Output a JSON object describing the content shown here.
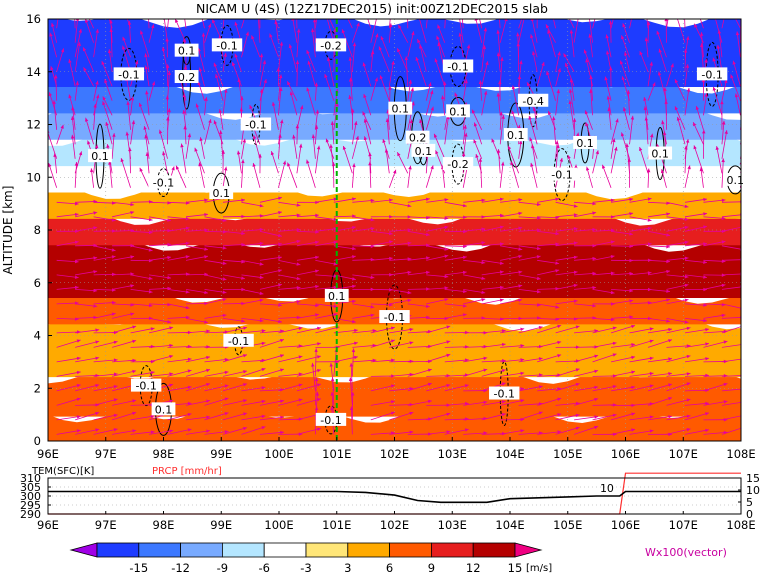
{
  "chart_data": [
    {
      "type": "heatmap",
      "title": "NICAM U (4S) (12Z17DEC2015) init:00Z12DEC2015 slab",
      "xlabel": "",
      "ylabel": "ALTITUDE [km]",
      "x_ticks": [
        "96E",
        "97E",
        "98E",
        "99E",
        "100E",
        "101E",
        "102E",
        "103E",
        "104E",
        "105E",
        "106E",
        "107E",
        "108E"
      ],
      "y_ticks": [
        "0",
        "2",
        "4",
        "6",
        "8",
        "10",
        "12",
        "14",
        "16"
      ],
      "xlim": [
        96,
        108
      ],
      "ylim": [
        0,
        16
      ],
      "grid": true,
      "marker_longitude": 101,
      "layers": [
        {
          "z0": 0,
          "z1": 1,
          "value": 9
        },
        {
          "z0": 1,
          "z1": 2.5,
          "value": 9
        },
        {
          "z0": 2.5,
          "z1": 4.5,
          "value": 6
        },
        {
          "z0": 4.5,
          "z1": 5.5,
          "value": 9
        },
        {
          "z0": 5.5,
          "z1": 7.5,
          "value": 15
        },
        {
          "z0": 7.5,
          "z1": 8.5,
          "value": 12
        },
        {
          "z0": 8.5,
          "z1": 9.5,
          "value": 6
        },
        {
          "z0": 9.5,
          "z1": 10.5,
          "value": 0
        },
        {
          "z0": 10.5,
          "z1": 11.5,
          "value": -6
        },
        {
          "z0": 11.5,
          "z1": 12.5,
          "value": -9
        },
        {
          "z0": 12.5,
          "z1": 13.5,
          "value": -12
        },
        {
          "z0": 13.5,
          "z1": 16,
          "value": -15
        }
      ],
      "contour_labels": [
        {
          "text": "0.1",
          "x": 98.4,
          "y": 14.8
        },
        {
          "text": "-0.1",
          "x": 99.1,
          "y": 15.0
        },
        {
          "text": "-0.1",
          "x": 97.4,
          "y": 13.9
        },
        {
          "text": "0.2",
          "x": 98.4,
          "y": 13.8
        },
        {
          "text": "-0.2",
          "x": 100.9,
          "y": 15.0
        },
        {
          "text": "-0.1",
          "x": 103.1,
          "y": 14.2
        },
        {
          "text": "-0.4",
          "x": 104.4,
          "y": 12.9
        },
        {
          "text": "0.1",
          "x": 102.1,
          "y": 12.6
        },
        {
          "text": "0.1",
          "x": 103.1,
          "y": 12.5
        },
        {
          "text": "-0.1",
          "x": 99.6,
          "y": 12.0
        },
        {
          "text": "0.2",
          "x": 102.4,
          "y": 11.5
        },
        {
          "text": "0.1",
          "x": 104.1,
          "y": 11.6
        },
        {
          "text": "0.1",
          "x": 102.5,
          "y": 11.0
        },
        {
          "text": "-0.2",
          "x": 103.1,
          "y": 10.5
        },
        {
          "text": "-0.1",
          "x": 104.9,
          "y": 10.1
        },
        {
          "text": "0.1",
          "x": 96.9,
          "y": 10.8
        },
        {
          "text": "-0.1",
          "x": 98.0,
          "y": 9.8
        },
        {
          "text": "0.1",
          "x": 99.0,
          "y": 9.4
        },
        {
          "text": "0.1",
          "x": 106.6,
          "y": 10.9
        },
        {
          "text": "-0.1",
          "x": 107.5,
          "y": 13.9
        },
        {
          "text": "0.1",
          "x": 107.9,
          "y": 9.9
        },
        {
          "text": "0.1",
          "x": 105.3,
          "y": 11.3
        },
        {
          "text": "0.1",
          "x": 101.0,
          "y": 5.5
        },
        {
          "text": "-0.1",
          "x": 102.0,
          "y": 4.7
        },
        {
          "text": "-0.1",
          "x": 99.3,
          "y": 3.8
        },
        {
          "text": "-0.1",
          "x": 97.7,
          "y": 2.1
        },
        {
          "text": "0.1",
          "x": 98.0,
          "y": 1.2
        },
        {
          "text": "-0.1",
          "x": 103.9,
          "y": 1.8
        },
        {
          "text": "-0.1",
          "x": 100.9,
          "y": 0.8
        }
      ]
    },
    {
      "type": "line",
      "title": "",
      "left_label": "TEM(SFC)[K]",
      "right_label": "PRCP [mm/hr]",
      "left_ticks": [
        "310",
        "305",
        "300",
        "295",
        "290"
      ],
      "left_ylim": [
        290,
        310
      ],
      "right_ticks": [
        "15",
        "10",
        "5",
        "0"
      ],
      "right_ylim": [
        0,
        15
      ],
      "x_ticks": [
        "96E",
        "97E",
        "98E",
        "99E",
        "100E",
        "101E",
        "102E",
        "103E",
        "104E",
        "105E",
        "106E",
        "107E",
        "108E"
      ],
      "xlim": [
        96,
        108
      ],
      "temperature": {
        "x": [
          96,
          97,
          98,
          99,
          100,
          101,
          101.5,
          102,
          102.4,
          102.8,
          103.2,
          103.6,
          104,
          104.5,
          105,
          105.5,
          105.9,
          106.0,
          106.5,
          107,
          107.5,
          108
        ],
        "values": [
          302.5,
          302.5,
          302.5,
          302.5,
          302.5,
          302.5,
          302.0,
          300.5,
          297.5,
          296.5,
          296.5,
          296.5,
          298.5,
          299.0,
          299.5,
          300.0,
          300.0,
          302.5,
          302.5,
          302.5,
          302.5,
          302.5
        ]
      },
      "precipitation": {
        "x": [
          96,
          105.9,
          106.0,
          108
        ],
        "values": [
          0,
          0,
          17,
          17
        ]
      },
      "annotation": "10"
    }
  ],
  "colorbar": {
    "ticks": [
      "-15",
      "-12",
      "-9",
      "-6",
      "-3",
      "3",
      "6",
      "9",
      "12",
      "15"
    ],
    "unit": "[m/s]",
    "colors": [
      "#a000e6",
      "#1e3cff",
      "#3c78ff",
      "#78aaff",
      "#b4e6ff",
      "#ffffff",
      "#ffe678",
      "#ffaa00",
      "#ff5a00",
      "#e61e1e",
      "#b40000",
      "#f00082"
    ]
  },
  "vector_label": "Wx100(vector)",
  "colors": {
    "vector": "#e6009c",
    "precip": "#ff3030",
    "marker_line": "#00b400"
  }
}
